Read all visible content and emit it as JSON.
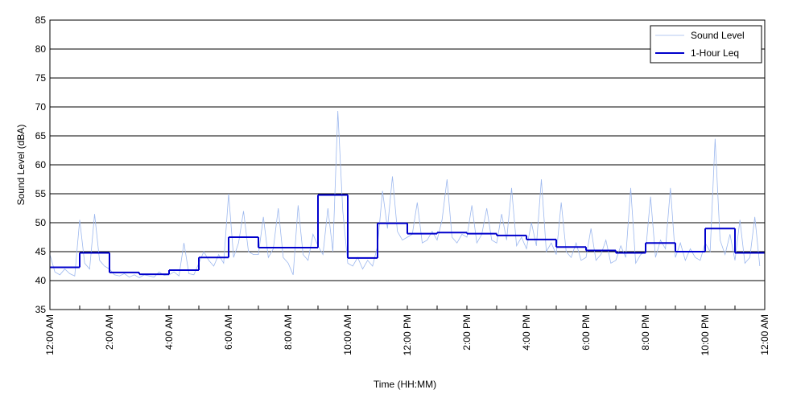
{
  "chart_data": {
    "type": "line",
    "xlabel": "Time (HH:MM)",
    "ylabel": "Sound Level (dBA)",
    "xlim": [
      0,
      1440
    ],
    "ylim": [
      35,
      85
    ],
    "xticks": [
      {
        "value": 0,
        "label": "12:00 AM"
      },
      {
        "value": 120,
        "label": "2:00 AM"
      },
      {
        "value": 240,
        "label": "4:00 AM"
      },
      {
        "value": 360,
        "label": "6:00 AM"
      },
      {
        "value": 480,
        "label": "8:00 AM"
      },
      {
        "value": 600,
        "label": "10:00 AM"
      },
      {
        "value": 720,
        "label": "12:00 PM"
      },
      {
        "value": 840,
        "label": "2:00 PM"
      },
      {
        "value": 960,
        "label": "4:00 PM"
      },
      {
        "value": 1080,
        "label": "6:00 PM"
      },
      {
        "value": 1200,
        "label": "8:00 PM"
      },
      {
        "value": 1320,
        "label": "10:00 PM"
      },
      {
        "value": 1440,
        "label": "12:00 AM"
      }
    ],
    "xminor_ticks": [
      60,
      180,
      300,
      420,
      540,
      660,
      780,
      900,
      1020,
      1140,
      1260,
      1380
    ],
    "yticks": [
      35,
      40,
      45,
      50,
      55,
      60,
      65,
      70,
      75,
      80,
      85
    ],
    "grid": true,
    "legend": "upper right",
    "series": [
      {
        "name": "Sound Level",
        "color": "#9db8ee",
        "width": 0.8,
        "x": [
          0,
          10,
          20,
          30,
          40,
          50,
          60,
          70,
          80,
          90,
          100,
          110,
          120,
          130,
          140,
          150,
          160,
          170,
          180,
          190,
          200,
          210,
          220,
          230,
          240,
          250,
          260,
          270,
          280,
          290,
          300,
          310,
          320,
          330,
          340,
          350,
          360,
          370,
          380,
          390,
          400,
          410,
          420,
          430,
          440,
          450,
          460,
          470,
          480,
          490,
          500,
          510,
          520,
          530,
          540,
          550,
          560,
          570,
          580,
          590,
          600,
          610,
          620,
          630,
          640,
          650,
          660,
          670,
          680,
          690,
          700,
          710,
          720,
          730,
          740,
          750,
          760,
          770,
          780,
          790,
          800,
          810,
          820,
          830,
          840,
          850,
          860,
          870,
          880,
          890,
          900,
          910,
          920,
          930,
          940,
          950,
          960,
          970,
          980,
          990,
          1000,
          1010,
          1020,
          1030,
          1040,
          1050,
          1060,
          1070,
          1080,
          1090,
          1100,
          1110,
          1120,
          1130,
          1140,
          1150,
          1160,
          1170,
          1180,
          1190,
          1200,
          1210,
          1220,
          1230,
          1240,
          1250,
          1260,
          1270,
          1280,
          1290,
          1300,
          1310,
          1320,
          1330,
          1340,
          1350,
          1360,
          1370,
          1380,
          1390,
          1400,
          1410,
          1420,
          1430
        ],
        "values": [
          44.5,
          41.5,
          41.0,
          42.0,
          41.2,
          40.8,
          50.5,
          43.0,
          42.0,
          51.5,
          43.5,
          42.5,
          42.0,
          41.0,
          40.8,
          41.2,
          40.6,
          41.0,
          40.5,
          41.0,
          40.8,
          40.6,
          41.5,
          40.9,
          41.0,
          41.5,
          40.8,
          46.5,
          41.2,
          41.0,
          43.0,
          45.0,
          43.5,
          42.5,
          44.5,
          43.0,
          55.0,
          44.0,
          46.5,
          52.0,
          45.0,
          44.5,
          44.5,
          51.0,
          44.0,
          45.5,
          52.5,
          44.0,
          43.0,
          41.0,
          53.0,
          44.5,
          43.5,
          48.0,
          46.0,
          44.5,
          52.5,
          45.0,
          69.3,
          52.0,
          43.0,
          42.5,
          44.0,
          42.0,
          43.5,
          42.5,
          46.0,
          55.5,
          49.0,
          58.0,
          48.5,
          47.0,
          47.5,
          48.0,
          53.5,
          46.5,
          47.0,
          48.5,
          47.0,
          50.5,
          57.5,
          47.5,
          46.5,
          48.0,
          47.5,
          53.0,
          46.5,
          48.0,
          52.5,
          47.0,
          46.5,
          51.5,
          47.0,
          56.0,
          46.0,
          47.5,
          45.5,
          50.0,
          46.0,
          57.5,
          45.0,
          46.5,
          44.5,
          53.5,
          45.0,
          44.0,
          46.5,
          43.5,
          44.0,
          49.0,
          43.5,
          44.5,
          47.0,
          43.0,
          43.5,
          46.0,
          44.0,
          56.0,
          43.0,
          44.5,
          45.0,
          54.5,
          44.0,
          47.0,
          45.5,
          56.0,
          44.0,
          46.5,
          43.5,
          45.5,
          44.0,
          43.5,
          46.5,
          45.0,
          64.5,
          47.0,
          44.5,
          48.0,
          43.5,
          50.5,
          43.0,
          44.0,
          51.0,
          42.5
        ]
      },
      {
        "name": "1-Hour Leq",
        "color": "#0000cc",
        "width": 2,
        "step": "post",
        "x": [
          0,
          60,
          120,
          180,
          240,
          300,
          360,
          420,
          480,
          540,
          600,
          660,
          720,
          780,
          840,
          900,
          960,
          1020,
          1080,
          1140,
          1200,
          1260,
          1320,
          1380
        ],
        "values": [
          42.3,
          44.8,
          41.4,
          41.1,
          41.8,
          44.0,
          47.5,
          45.7,
          45.7,
          54.8,
          43.9,
          49.9,
          48.1,
          48.3,
          48.1,
          47.8,
          47.1,
          45.8,
          45.2,
          44.8,
          46.5,
          45.0,
          49.0,
          44.8
        ]
      }
    ]
  }
}
